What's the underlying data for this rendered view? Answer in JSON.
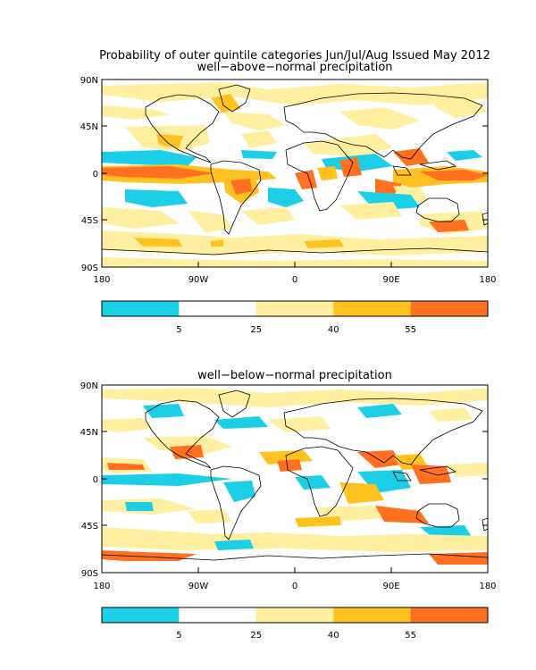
{
  "figure": {
    "title": "Probability of outer quintile categories Jun/Jul/Aug Issued May 2012"
  },
  "panels": [
    {
      "subtitle": "well−above−normal precipitation",
      "lat_ticks": [
        "90N",
        "45N",
        "0",
        "45S",
        "90S"
      ],
      "lon_ticks": [
        "180",
        "90W",
        "0",
        "90E",
        "180"
      ]
    },
    {
      "subtitle": "well−below−normal precipitation",
      "lat_ticks": [
        "90N",
        "45N",
        "0",
        "45S",
        "90S"
      ],
      "lon_ticks": [
        "180",
        "90W",
        "0",
        "90E",
        "180"
      ]
    }
  ],
  "colorbar": {
    "labels": [
      "5",
      "25",
      "40",
      "55"
    ],
    "colors": [
      "#1ccfe6",
      "#ffffff",
      "#ffefa0",
      "#ffc220",
      "#ff7020"
    ]
  },
  "colors": {
    "below5": "#1ccfe6",
    "neutral": "#ffffff",
    "p25_40": "#ffefa0",
    "p40_55": "#ffc220",
    "above55": "#ff7020"
  }
}
